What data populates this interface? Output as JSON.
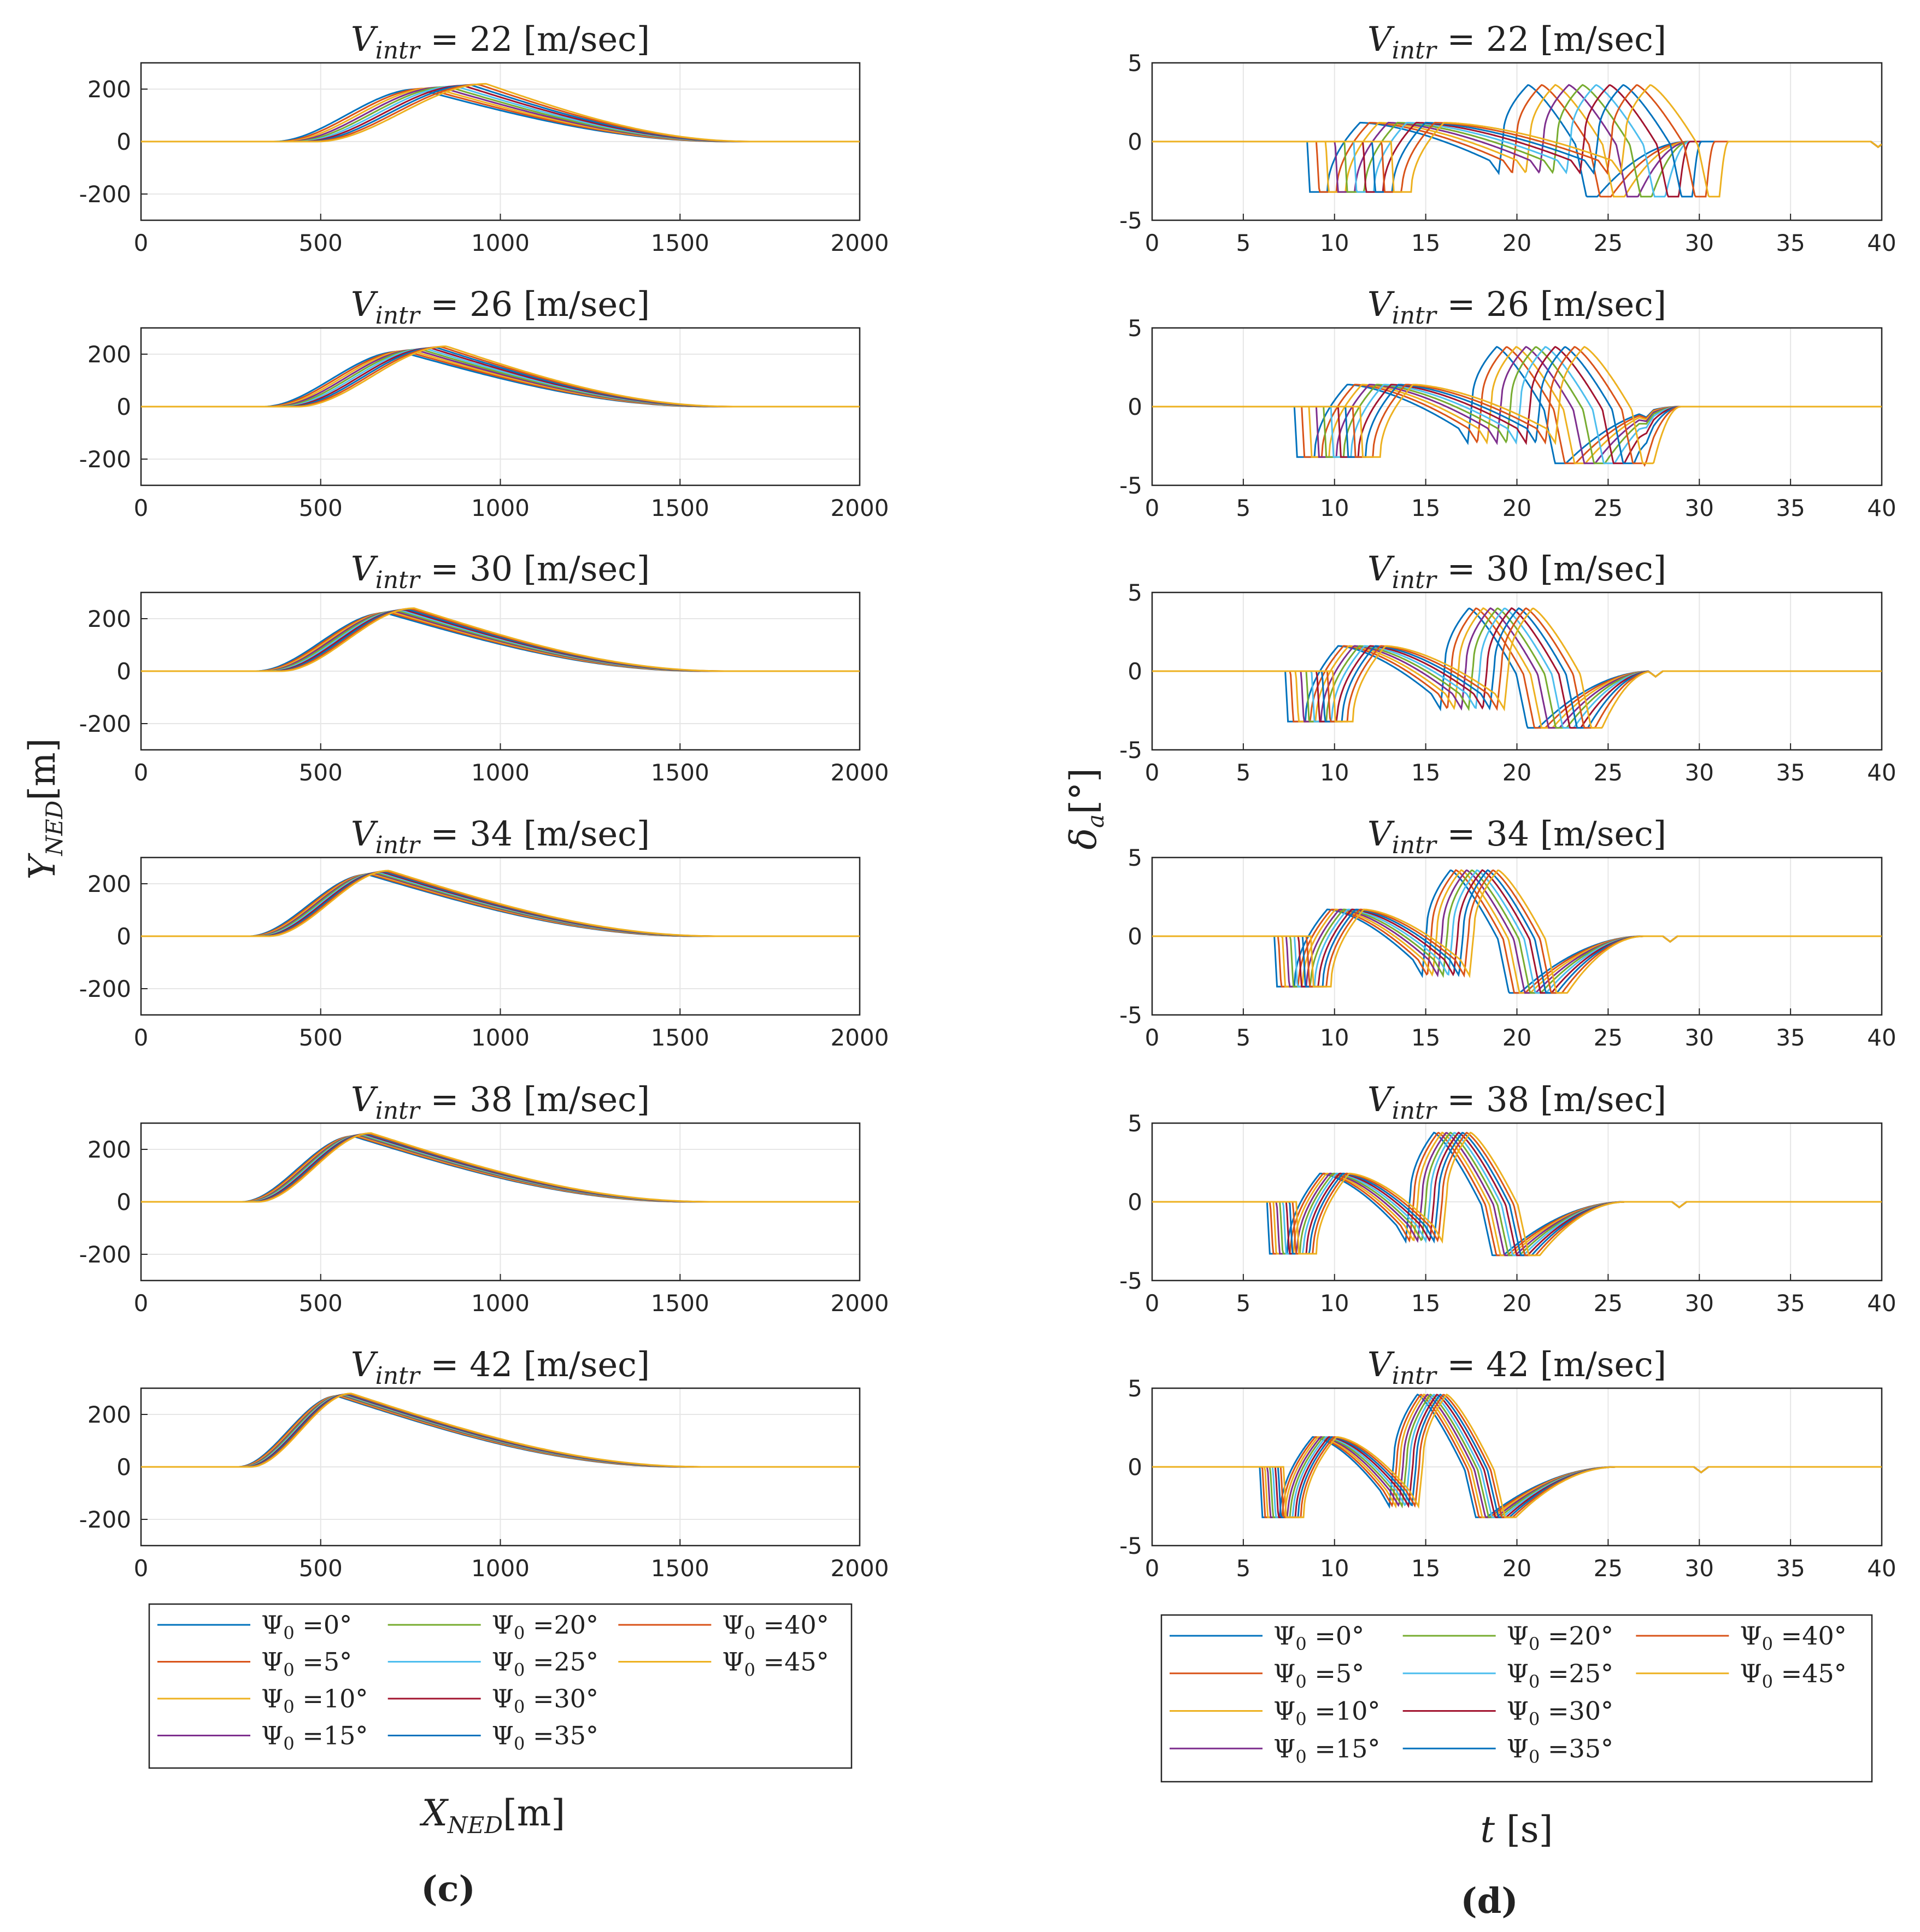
{
  "figure": {
    "panel_labels": [
      "(c)",
      "(d)"
    ],
    "left_ylabel": "Y",
    "left_ylabel_sub": "NED",
    "left_ylabel_unit": "[m]",
    "left_xlabel": "X",
    "left_xlabel_sub": "NED",
    "left_xlabel_unit": "[m]",
    "right_ylabel": "δ",
    "right_ylabel_sub": "a",
    "right_ylabel_unit": "[°]",
    "right_xlabel": "t",
    "right_xlabel_unit": "[s]",
    "title_prefix": "V",
    "title_sub": "intr",
    "title_unit": "[m/sec]",
    "speeds": [
      "22",
      "26",
      "30",
      "34",
      "38",
      "42"
    ],
    "legend_symbol": "Ψ",
    "legend_sub": "0",
    "legend_entries": [
      "=0°",
      "=5°",
      "=10°",
      "=15°",
      "=20°",
      "=25°",
      "=30°",
      "=35°",
      "=40°",
      "=45°"
    ],
    "colors": [
      "#0072BD",
      "#D95319",
      "#EDB120",
      "#7E2F8E",
      "#77AC30",
      "#4DBEEE",
      "#A2142F",
      "#0072BD",
      "#D95319",
      "#EDB120"
    ]
  },
  "chart_data": [
    {
      "type": "line",
      "panel": "(c)",
      "xlabel": "X_NED [m]",
      "ylabel": "Y_NED [m]",
      "xlim": [
        0,
        2000
      ],
      "ylim": [
        -300,
        300
      ],
      "xticks": [
        "0",
        "500",
        "1000",
        "1500",
        "2000"
      ],
      "yticks": [
        "200",
        "0",
        "-200"
      ],
      "legend": [
        "Ψ0 =0°",
        "Ψ0 =5°",
        "Ψ0 =10°",
        "Ψ0 =15°",
        "Ψ0 =20°",
        "Ψ0 =25°",
        "Ψ0 =30°",
        "Ψ0 =35°",
        "Ψ0 =40°",
        "Ψ0 =45°"
      ],
      "subplots": [
        {
          "title": "V_intr = 22 [m/sec]",
          "onset_x": 370,
          "onset_spread": 120,
          "peak_x": 770,
          "peak_spread": 190,
          "peak_y": 200,
          "peak_y_spread": 20,
          "end_x": 1650
        },
        {
          "title": "V_intr = 26 [m/sec]",
          "onset_x": 340,
          "onset_spread": 95,
          "peak_x": 720,
          "peak_spread": 130,
          "peak_y": 210,
          "peak_y_spread": 20,
          "end_x": 1600
        },
        {
          "title": "V_intr = 30 [m/sec]",
          "onset_x": 320,
          "onset_spread": 70,
          "peak_x": 680,
          "peak_spread": 80,
          "peak_y": 222,
          "peak_y_spread": 18,
          "end_x": 1580
        },
        {
          "title": "V_intr = 34 [m/sec]",
          "onset_x": 300,
          "onset_spread": 55,
          "peak_x": 630,
          "peak_spread": 60,
          "peak_y": 235,
          "peak_y_spread": 15,
          "end_x": 1560
        },
        {
          "title": "V_intr = 38 [m/sec]",
          "onset_x": 280,
          "onset_spread": 45,
          "peak_x": 590,
          "peak_spread": 50,
          "peak_y": 250,
          "peak_y_spread": 12,
          "end_x": 1540
        },
        {
          "title": "V_intr = 42 [m/sec]",
          "onset_x": 270,
          "onset_spread": 35,
          "peak_x": 545,
          "peak_spread": 40,
          "peak_y": 270,
          "peak_y_spread": 10,
          "end_x": 1520
        }
      ]
    },
    {
      "type": "line",
      "panel": "(d)",
      "xlabel": "t [s]",
      "ylabel": "δa [°]",
      "xlim": [
        0,
        40
      ],
      "ylim": [
        -5,
        5
      ],
      "xticks": [
        "0",
        "5",
        "10",
        "15",
        "20",
        "25",
        "30",
        "35",
        "40"
      ],
      "yticks": [
        "5",
        "0",
        "-5"
      ],
      "legend": [
        "Ψ0 =0°",
        "Ψ0 =5°",
        "Ψ0 =10°",
        "Ψ0 =15°",
        "Ψ0 =20°",
        "Ψ0 =25°",
        "Ψ0 =30°",
        "Ψ0 =35°",
        "Ψ0 =40°",
        "Ψ0 =45°"
      ],
      "subplots": [
        {
          "title": "V_intr = 22 [m/sec]",
          "t1": 8.5,
          "s1": 4.6,
          "t2": 19.0,
          "s2": 6.7,
          "d1": 3.2,
          "p1": 1.2,
          "d2": 2.0,
          "p2": 3.6,
          "d3": 3.5,
          "settle": 29.5,
          "blip": 39.7
        },
        {
          "title": "V_intr = 26 [m/sec]",
          "t1": 7.8,
          "s1": 3.6,
          "t2": 17.3,
          "s2": 4.8,
          "d1": 3.2,
          "p1": 1.4,
          "d2": 2.3,
          "p2": 3.8,
          "d3": 3.6,
          "settle": 29.0,
          "blip": 27.0
        },
        {
          "title": "V_intr = 30 [m/sec]",
          "t1": 7.3,
          "s1": 2.6,
          "t2": 15.8,
          "s2": 3.5,
          "d1": 3.2,
          "p1": 1.6,
          "d2": 2.4,
          "p2": 4.0,
          "d3": 3.6,
          "settle": 27.5,
          "blip": 27.5
        },
        {
          "title": "V_intr = 34 [m/sec]",
          "t1": 6.7,
          "s1": 2.0,
          "t2": 14.8,
          "s2": 2.6,
          "d1": 3.2,
          "p1": 1.7,
          "d2": 2.5,
          "p2": 4.2,
          "d3": 3.6,
          "settle": 27.0,
          "blip": 28.3
        },
        {
          "title": "V_intr = 38 [m/sec]",
          "t1": 6.3,
          "s1": 1.6,
          "t2": 13.9,
          "s2": 2.0,
          "d1": 3.3,
          "p1": 1.8,
          "d2": 2.5,
          "p2": 4.4,
          "d3": 3.4,
          "settle": 26.0,
          "blip": 28.8
        },
        {
          "title": "V_intr = 42 [m/sec]",
          "t1": 5.9,
          "s1": 1.3,
          "t2": 13.0,
          "s2": 1.6,
          "d1": 3.2,
          "p1": 1.9,
          "d2": 2.5,
          "p2": 4.6,
          "d3": 3.2,
          "settle": 25.5,
          "blip": 30.0
        }
      ]
    }
  ]
}
